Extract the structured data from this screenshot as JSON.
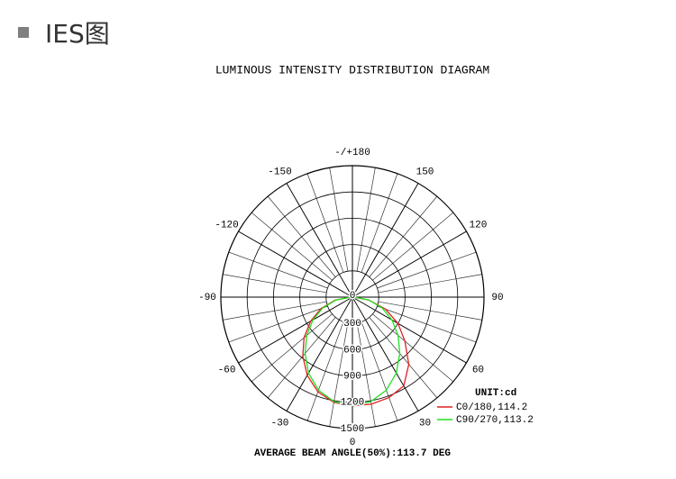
{
  "header": {
    "title": "IES图"
  },
  "chart_data": {
    "type": "polar",
    "title": "LUMINOUS INTENSITY DISTRIBUTION DIAGRAM",
    "footer": "AVERAGE BEAM ANGLE(50%):113.7 DEG",
    "unit": "UNIT:cd",
    "x": [
      -90,
      -80,
      -70,
      -60,
      -50,
      -40,
      -30,
      -20,
      -10,
      0,
      10,
      20,
      30,
      40,
      50,
      60,
      70,
      80,
      90
    ],
    "rlim": [
      0,
      1500
    ],
    "rticks": [
      0,
      300,
      600,
      900,
      1200,
      1500
    ],
    "angle_ticks": [
      0,
      30,
      60,
      90,
      120,
      150,
      {
        "value": 180,
        "label": "-/+180"
      },
      -150,
      -120,
      -90,
      -60,
      -30
    ],
    "series": [
      {
        "name": "C0/180,114.2",
        "color": "#e02020",
        "values": [
          20,
          200,
          380,
          550,
          720,
          880,
          1030,
          1150,
          1220,
          1240,
          1240,
          1220,
          1170,
          1000,
          780,
          600,
          400,
          190,
          20
        ]
      },
      {
        "name": "C90/270,113.2",
        "color": "#20e020",
        "values": [
          20,
          190,
          360,
          520,
          680,
          840,
          1000,
          1130,
          1210,
          1240,
          1210,
          1130,
          1000,
          840,
          680,
          520,
          360,
          190,
          20
        ]
      }
    ]
  }
}
